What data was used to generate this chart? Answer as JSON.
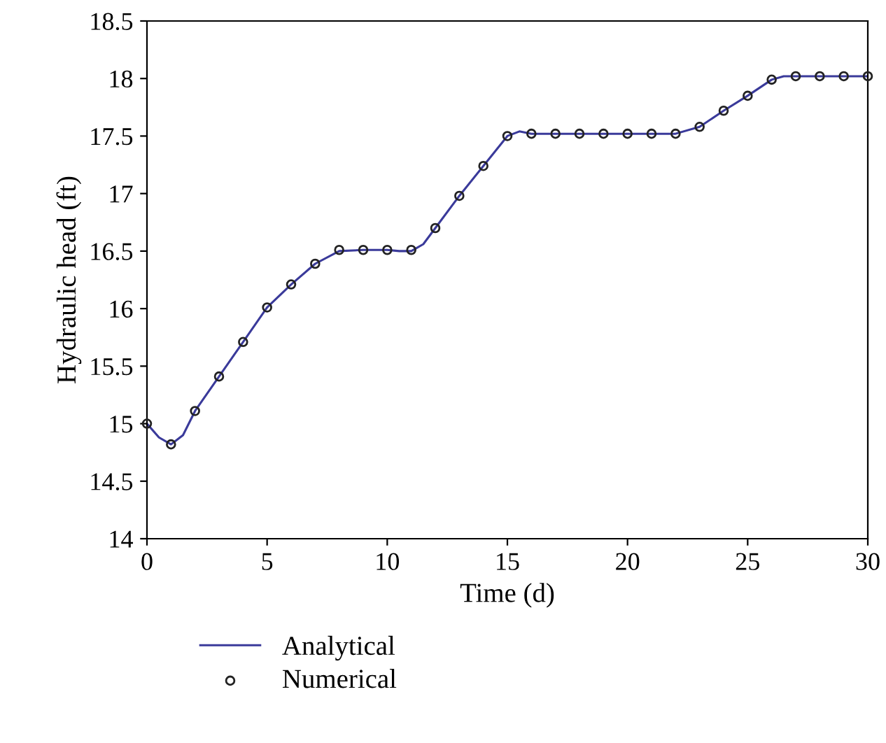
{
  "chart_data": {
    "type": "line",
    "xlabel": "Time (d)",
    "ylabel": "Hydraulic head (ft)",
    "xlim": [
      0,
      30
    ],
    "xticks": [
      0,
      5,
      10,
      15,
      20,
      25,
      30
    ],
    "ylim": [
      14,
      18.5
    ],
    "yticks": [
      14,
      14.5,
      15,
      15.5,
      16,
      16.5,
      17,
      17.5,
      18,
      18.5
    ],
    "grid": false,
    "legend": "bottom",
    "series": [
      {
        "name": "Analytical",
        "color": "#3a3a9a",
        "marker": "none",
        "line_style": "solid",
        "x": [
          0,
          0.5,
          1,
          1.5,
          2,
          3,
          4,
          5,
          6,
          7,
          8,
          9,
          10,
          10.5,
          11,
          11.5,
          12,
          13,
          14,
          15,
          15.5,
          16,
          17,
          18,
          19,
          20,
          21,
          22,
          23,
          24,
          25,
          26,
          26.5,
          27,
          28,
          29,
          30
        ],
        "values": [
          15.0,
          14.88,
          14.82,
          14.9,
          15.11,
          15.41,
          15.71,
          16.01,
          16.21,
          16.39,
          16.5,
          16.51,
          16.51,
          16.5,
          16.5,
          16.56,
          16.7,
          16.98,
          17.24,
          17.5,
          17.54,
          17.52,
          17.52,
          17.52,
          17.52,
          17.52,
          17.52,
          17.52,
          17.58,
          17.72,
          17.85,
          17.99,
          18.02,
          18.02,
          18.02,
          18.02,
          18.02
        ]
      },
      {
        "name": "Numerical",
        "type": "scatter",
        "color": "#222222",
        "marker": "circle",
        "x": [
          0,
          1,
          2,
          3,
          4,
          5,
          6,
          7,
          8,
          9,
          10,
          11,
          12,
          13,
          14,
          15,
          16,
          17,
          18,
          19,
          20,
          21,
          22,
          23,
          24,
          25,
          26,
          27,
          28,
          29,
          30
        ],
        "values": [
          15.0,
          14.82,
          15.11,
          15.41,
          15.71,
          16.01,
          16.21,
          16.39,
          16.51,
          16.51,
          16.51,
          16.51,
          16.7,
          16.98,
          17.24,
          17.5,
          17.52,
          17.52,
          17.52,
          17.52,
          17.52,
          17.52,
          17.52,
          17.58,
          17.72,
          17.85,
          17.99,
          18.02,
          18.02,
          18.02,
          18.02
        ]
      }
    ]
  }
}
